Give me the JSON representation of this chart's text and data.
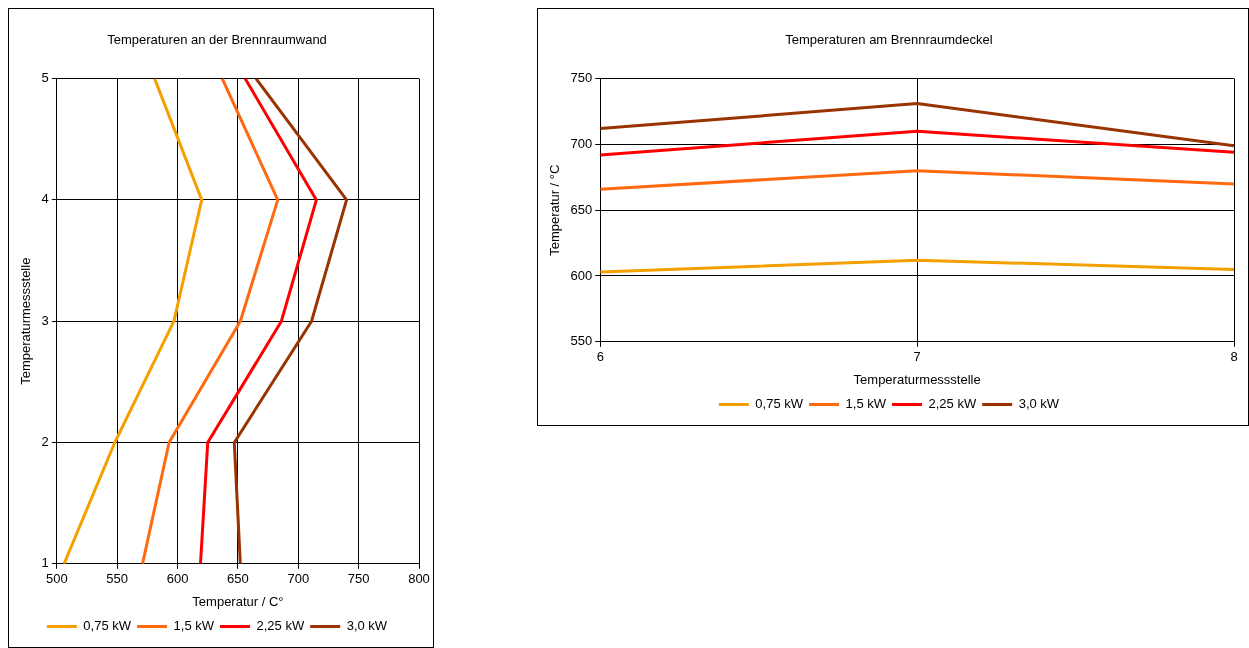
{
  "chart_data": [
    {
      "type": "line",
      "title": "Temperaturen an der Brennraumwand",
      "xlabel": "Temperatur / C°",
      "ylabel": "Temperaturmessstelle",
      "xlim": [
        500,
        800
      ],
      "xticks": [
        500,
        550,
        600,
        650,
        700,
        750,
        800
      ],
      "ylim": [
        1,
        5
      ],
      "yticks": [
        1,
        2,
        3,
        4,
        5
      ],
      "grid": true,
      "legend": "bottom",
      "marker": "none",
      "series": [
        {
          "name": "0,75 kW",
          "color": "#f5a000",
          "x": [
            506,
            548,
            597,
            620,
            581
          ],
          "values": [
            1,
            2,
            3,
            4,
            5
          ]
        },
        {
          "name": "1,5 kW",
          "color": "#ff6a10",
          "x": [
            571,
            593,
            652,
            683,
            637
          ],
          "values": [
            1,
            2,
            3,
            4,
            5
          ]
        },
        {
          "name": "2,25 kW",
          "color": "#ff0000",
          "x": [
            619,
            625,
            686,
            715,
            656
          ],
          "values": [
            1,
            2,
            3,
            4,
            5
          ]
        },
        {
          "name": "3,0 kW",
          "color": "#993300",
          "x": [
            652,
            647,
            711,
            740,
            665
          ],
          "values": [
            1,
            2,
            3,
            4,
            5
          ]
        }
      ]
    },
    {
      "type": "line",
      "title": "Temperaturen am Brennraumdeckel",
      "xlabel": "Temperaturmessstelle",
      "ylabel": "Temperatur / °C",
      "x": [
        6,
        7,
        8
      ],
      "xlim": [
        6,
        8
      ],
      "xticks": [
        6,
        7,
        8
      ],
      "ylim": [
        550,
        750
      ],
      "yticks": [
        550,
        600,
        650,
        700,
        750
      ],
      "grid": true,
      "legend": "bottom",
      "marker": "none",
      "series": [
        {
          "name": "0,75 kW",
          "color": "#f5a000",
          "values": [
            603,
            612,
            605
          ]
        },
        {
          "name": "1,5 kW",
          "color": "#ff6a10",
          "values": [
            666,
            680,
            670
          ]
        },
        {
          "name": "2,25 kW",
          "color": "#ff0000",
          "values": [
            692,
            710,
            694
          ]
        },
        {
          "name": "3,0 kW",
          "color": "#993300",
          "values": [
            712,
            731,
            699
          ]
        }
      ]
    }
  ]
}
